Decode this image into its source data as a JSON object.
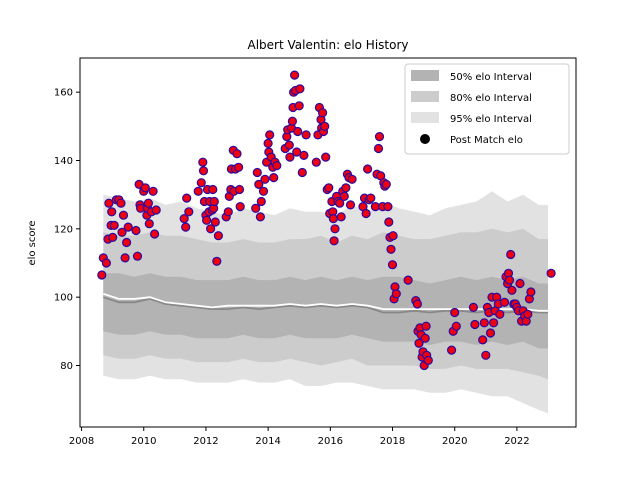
{
  "chart_data": {
    "type": "scatter",
    "title": "Albert Valentin: elo History",
    "xlabel": "",
    "ylabel": "elo score",
    "xlim": [
      2007.95,
      2023.9
    ],
    "ylim": [
      62,
      170
    ],
    "xticks": [
      2008,
      2010,
      2012,
      2014,
      2016,
      2018,
      2020,
      2022
    ],
    "yticks": [
      80,
      100,
      120,
      140,
      160
    ],
    "legend_position": "top-right",
    "legend": [
      {
        "label": "50% elo Interval",
        "key": "band50"
      },
      {
        "label": "80% elo Interval",
        "key": "band80"
      },
      {
        "label": "95% elo Interval",
        "key": "band95"
      },
      {
        "label": "Post Match elo",
        "key": "points"
      }
    ],
    "colors": {
      "band50": "#b3b3b3",
      "band80": "#cccccc",
      "band95": "#e2e2e2",
      "point_fill": "#ee0011",
      "point_edge": "#2a0aa0",
      "mean_line": "#ffffff",
      "median_line": "#888888"
    },
    "bands": {
      "x": [
        2008.7,
        2009.2,
        2009.7,
        2010.2,
        2010.7,
        2011.2,
        2011.7,
        2012.2,
        2012.7,
        2013.2,
        2013.7,
        2014.2,
        2014.7,
        2015.2,
        2015.7,
        2016.2,
        2016.7,
        2017.2,
        2017.7,
        2018.2,
        2018.7,
        2019.2,
        2019.7,
        2020.2,
        2020.7,
        2021.2,
        2021.7,
        2022.2,
        2022.7,
        2023.0
      ],
      "p95_hi": [
        130,
        129,
        128,
        129,
        127,
        128,
        126,
        125,
        124,
        126,
        125,
        124,
        126,
        125,
        125,
        124,
        127,
        125,
        128,
        126,
        125,
        124,
        126,
        127,
        128,
        131,
        128,
        130,
        127,
        127
      ],
      "p80_hi": [
        119,
        118,
        118,
        119,
        118,
        118,
        117,
        116,
        116,
        117,
        116,
        116,
        117,
        117,
        118,
        116,
        118,
        117,
        119,
        118,
        117,
        117,
        118,
        119,
        119,
        120,
        119,
        120,
        117,
        117
      ],
      "p50_hi": [
        107,
        107,
        106,
        107,
        106,
        106,
        105,
        105,
        105,
        106,
        105,
        105,
        106,
        105,
        106,
        105,
        106,
        105,
        106,
        106,
        105,
        104,
        105,
        106,
        105,
        106,
        105,
        106,
        104,
        104
      ],
      "p50_lo": [
        90,
        89,
        89,
        90,
        89,
        89,
        88,
        88,
        88,
        89,
        88,
        88,
        89,
        88,
        88,
        88,
        89,
        88,
        87,
        87,
        87,
        86,
        87,
        87,
        86,
        87,
        86,
        87,
        85,
        85
      ],
      "p80_lo": [
        83,
        82,
        82,
        83,
        82,
        82,
        81,
        81,
        81,
        82,
        81,
        81,
        82,
        81,
        80,
        81,
        82,
        80,
        80,
        80,
        80,
        79,
        79,
        80,
        79,
        79,
        79,
        78,
        77,
        76
      ],
      "p95_lo": [
        77,
        76,
        76,
        77,
        76,
        76,
        75,
        75,
        75,
        76,
        75,
        75,
        76,
        74,
        74,
        75,
        75,
        74,
        73,
        73,
        73,
        72,
        72,
        73,
        72,
        71,
        71,
        69,
        67,
        66
      ],
      "mean": [
        101,
        99.5,
        99.5,
        100,
        98.5,
        98,
        97.5,
        97,
        97.5,
        97.5,
        97.5,
        97.5,
        98,
        97.5,
        98,
        97.5,
        98,
        97.5,
        96.5,
        96.5,
        96.5,
        96.5,
        96.5,
        96.5,
        96.5,
        96.5,
        96.5,
        96.5,
        96,
        96
      ],
      "median": [
        100,
        98.5,
        98.5,
        99.5,
        98,
        97.5,
        97,
        96.5,
        96.5,
        97,
        96.5,
        97,
        97.5,
        97,
        97.5,
        97,
        97.5,
        97,
        95.5,
        95.5,
        96,
        95.5,
        96,
        96,
        95.5,
        96,
        95.5,
        96,
        95.5,
        95.5
      ]
    },
    "points": [
      [
        2008.65,
        106.5
      ],
      [
        2008.7,
        111.5
      ],
      [
        2008.8,
        110
      ],
      [
        2008.85,
        117
      ],
      [
        2008.88,
        127.5
      ],
      [
        2008.95,
        121
      ],
      [
        2008.97,
        125
      ],
      [
        2009.0,
        117.5
      ],
      [
        2009.05,
        121
      ],
      [
        2009.12,
        128.5
      ],
      [
        2009.2,
        128.5
      ],
      [
        2009.27,
        127.5
      ],
      [
        2009.3,
        119
      ],
      [
        2009.35,
        124
      ],
      [
        2009.4,
        111.5
      ],
      [
        2009.45,
        116
      ],
      [
        2009.5,
        120.5
      ],
      [
        2009.75,
        119.5
      ],
      [
        2009.8,
        112
      ],
      [
        2009.85,
        133
      ],
      [
        2009.88,
        127
      ],
      [
        2009.9,
        126
      ],
      [
        2010.0,
        131
      ],
      [
        2010.05,
        132
      ],
      [
        2010.1,
        124
      ],
      [
        2010.12,
        126
      ],
      [
        2010.15,
        127.5
      ],
      [
        2010.18,
        121.5
      ],
      [
        2010.25,
        125
      ],
      [
        2010.3,
        131
      ],
      [
        2010.35,
        118.5
      ],
      [
        2010.4,
        125.5
      ],
      [
        2011.3,
        123
      ],
      [
        2011.35,
        120.5
      ],
      [
        2011.38,
        129
      ],
      [
        2011.45,
        125
      ],
      [
        2011.75,
        131
      ],
      [
        2011.85,
        133.5
      ],
      [
        2011.9,
        139.5
      ],
      [
        2011.92,
        137
      ],
      [
        2011.95,
        128
      ],
      [
        2012.0,
        124
      ],
      [
        2012.02,
        122.5
      ],
      [
        2012.05,
        131.5
      ],
      [
        2012.1,
        125
      ],
      [
        2012.12,
        128
      ],
      [
        2012.15,
        120
      ],
      [
        2012.2,
        125.5
      ],
      [
        2012.22,
        131.5
      ],
      [
        2012.25,
        126
      ],
      [
        2012.27,
        128
      ],
      [
        2012.3,
        122
      ],
      [
        2012.35,
        110.5
      ],
      [
        2012.4,
        118
      ],
      [
        2012.65,
        123.5
      ],
      [
        2012.72,
        125
      ],
      [
        2012.75,
        129.5
      ],
      [
        2012.8,
        131.5
      ],
      [
        2012.82,
        137.5
      ],
      [
        2012.88,
        143
      ],
      [
        2012.9,
        131
      ],
      [
        2012.95,
        137.5
      ],
      [
        2013.0,
        142
      ],
      [
        2013.05,
        138
      ],
      [
        2013.08,
        131.5
      ],
      [
        2013.1,
        126.5
      ],
      [
        2013.6,
        126
      ],
      [
        2013.65,
        136.5
      ],
      [
        2013.7,
        133
      ],
      [
        2013.75,
        123.5
      ],
      [
        2013.78,
        128
      ],
      [
        2013.85,
        131
      ],
      [
        2013.9,
        134.5
      ],
      [
        2013.95,
        139.5
      ],
      [
        2014.0,
        145
      ],
      [
        2014.02,
        142.5
      ],
      [
        2014.05,
        147.5
      ],
      [
        2014.1,
        141
      ],
      [
        2014.15,
        138
      ],
      [
        2014.18,
        135
      ],
      [
        2014.22,
        139.5
      ],
      [
        2014.28,
        138.5
      ],
      [
        2014.55,
        143.5
      ],
      [
        2014.6,
        147
      ],
      [
        2014.63,
        149
      ],
      [
        2014.68,
        144.5
      ],
      [
        2014.7,
        141
      ],
      [
        2014.75,
        149.5
      ],
      [
        2014.78,
        151.5
      ],
      [
        2014.8,
        155.5
      ],
      [
        2014.82,
        160
      ],
      [
        2014.85,
        165
      ],
      [
        2014.88,
        160.5
      ],
      [
        2014.92,
        142.5
      ],
      [
        2014.95,
        148.5
      ],
      [
        2015.0,
        156
      ],
      [
        2015.02,
        161
      ],
      [
        2015.1,
        136.5
      ],
      [
        2015.15,
        141.5
      ],
      [
        2015.22,
        147.5
      ],
      [
        2015.55,
        139.5
      ],
      [
        2015.6,
        147.5
      ],
      [
        2015.65,
        155.5
      ],
      [
        2015.7,
        152
      ],
      [
        2015.72,
        149.5
      ],
      [
        2015.75,
        154
      ],
      [
        2015.78,
        148.5
      ],
      [
        2015.82,
        150
      ],
      [
        2015.85,
        141
      ],
      [
        2015.9,
        131.5
      ],
      [
        2015.95,
        132
      ],
      [
        2015.98,
        124.5
      ],
      [
        2016.05,
        128
      ],
      [
        2016.08,
        125
      ],
      [
        2016.1,
        123
      ],
      [
        2016.12,
        116.5
      ],
      [
        2016.15,
        120
      ],
      [
        2016.2,
        129.5
      ],
      [
        2016.25,
        128
      ],
      [
        2016.3,
        127.5
      ],
      [
        2016.35,
        123.5
      ],
      [
        2016.4,
        131
      ],
      [
        2016.45,
        129.5
      ],
      [
        2016.5,
        132
      ],
      [
        2016.55,
        136
      ],
      [
        2016.6,
        135
      ],
      [
        2016.65,
        127
      ],
      [
        2016.7,
        134.5
      ],
      [
        2017.05,
        126.5
      ],
      [
        2017.1,
        129
      ],
      [
        2017.15,
        124.5
      ],
      [
        2017.2,
        137.5
      ],
      [
        2017.25,
        128.5
      ],
      [
        2017.3,
        129
      ],
      [
        2017.45,
        126.5
      ],
      [
        2017.5,
        136
      ],
      [
        2017.55,
        143.5
      ],
      [
        2017.58,
        147
      ],
      [
        2017.62,
        135.5
      ],
      [
        2017.68,
        126.5
      ],
      [
        2017.72,
        133.5
      ],
      [
        2017.75,
        132.5
      ],
      [
        2017.8,
        133
      ],
      [
        2017.85,
        126.5
      ],
      [
        2017.88,
        122
      ],
      [
        2017.92,
        117.5
      ],
      [
        2017.95,
        114
      ],
      [
        2018.0,
        109.5
      ],
      [
        2018.02,
        118
      ],
      [
        2018.05,
        99.5
      ],
      [
        2018.08,
        103
      ],
      [
        2018.12,
        101
      ],
      [
        2018.5,
        105
      ],
      [
        2018.75,
        99
      ],
      [
        2018.8,
        98
      ],
      [
        2018.82,
        90
      ],
      [
        2018.85,
        86.5
      ],
      [
        2018.88,
        91
      ],
      [
        2018.92,
        89
      ],
      [
        2018.95,
        82.5
      ],
      [
        2018.98,
        84
      ],
      [
        2019.02,
        80
      ],
      [
        2019.05,
        88
      ],
      [
        2019.08,
        91.5
      ],
      [
        2019.1,
        83
      ],
      [
        2019.15,
        81.5
      ],
      [
        2019.9,
        84.5
      ],
      [
        2019.95,
        90
      ],
      [
        2020.0,
        95.5
      ],
      [
        2020.05,
        91.5
      ],
      [
        2020.6,
        97
      ],
      [
        2020.65,
        92
      ],
      [
        2020.9,
        87.5
      ],
      [
        2020.95,
        92.5
      ],
      [
        2021.0,
        83
      ],
      [
        2021.05,
        97
      ],
      [
        2021.1,
        95.5
      ],
      [
        2021.15,
        89.5
      ],
      [
        2021.2,
        100
      ],
      [
        2021.25,
        92.5
      ],
      [
        2021.3,
        96
      ],
      [
        2021.35,
        100
      ],
      [
        2021.4,
        98
      ],
      [
        2021.45,
        95
      ],
      [
        2021.6,
        98.5
      ],
      [
        2021.65,
        106
      ],
      [
        2021.7,
        104
      ],
      [
        2021.73,
        107
      ],
      [
        2021.76,
        105
      ],
      [
        2021.8,
        112.5
      ],
      [
        2021.84,
        102
      ],
      [
        2021.9,
        98
      ],
      [
        2021.95,
        98
      ],
      [
        2022.0,
        97
      ],
      [
        2022.05,
        96
      ],
      [
        2022.1,
        104
      ],
      [
        2022.15,
        93
      ],
      [
        2022.2,
        96
      ],
      [
        2022.25,
        94.5
      ],
      [
        2022.3,
        93
      ],
      [
        2022.35,
        95
      ],
      [
        2022.4,
        99.5
      ],
      [
        2022.45,
        101.5
      ],
      [
        2023.1,
        107
      ]
    ]
  }
}
